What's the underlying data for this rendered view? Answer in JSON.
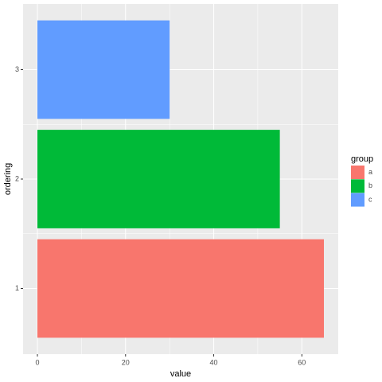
{
  "chart_data": {
    "type": "bar",
    "orientation": "horizontal",
    "x_label": "value",
    "y_label": "ordering",
    "categories": [
      "1",
      "2",
      "3"
    ],
    "series": [
      {
        "name": "a",
        "color": "#F8766D",
        "values": [
          65,
          null,
          null
        ]
      },
      {
        "name": "b",
        "color": "#00BA38",
        "values": [
          null,
          55,
          null
        ]
      },
      {
        "name": "c",
        "color": "#619CFF",
        "values": [
          null,
          null,
          30
        ]
      }
    ],
    "legend_title": "group",
    "legend": "right",
    "xlim": [
      -3.25,
      68.25
    ],
    "xticks": [
      0,
      20,
      40,
      60
    ],
    "xminorticks": [
      10,
      30,
      50
    ],
    "grid": true
  }
}
